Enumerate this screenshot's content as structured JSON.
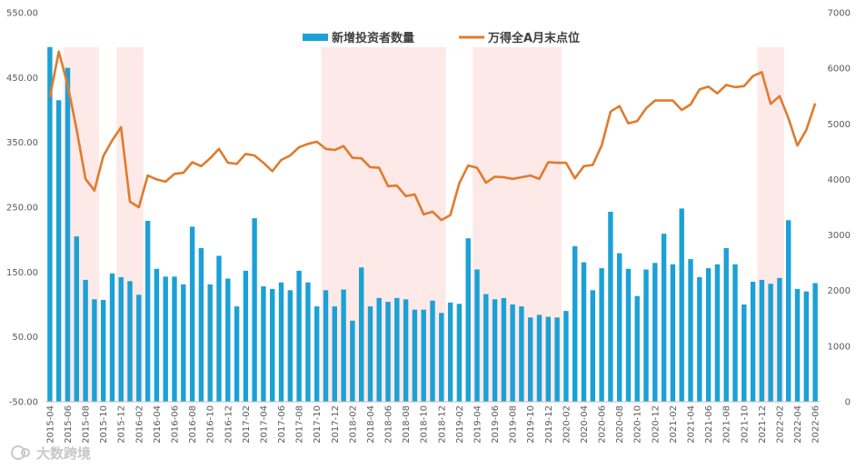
{
  "chart_data": {
    "type": "bar+line",
    "title": "",
    "legend_position": "top-center",
    "series": [
      {
        "name": "新增投资者数量",
        "type": "bar",
        "axis": "left",
        "color": "#1ba1d6",
        "values": [
          497,
          415,
          465,
          205,
          138,
          108,
          107,
          148,
          142,
          136,
          115,
          229,
          155,
          143,
          143,
          131,
          220,
          187,
          131,
          175,
          140,
          97,
          152,
          233,
          128,
          124,
          134,
          122,
          152,
          134,
          97,
          122,
          97,
          123,
          75,
          157,
          97,
          110,
          104,
          110,
          108,
          92,
          92,
          106,
          87,
          103,
          101,
          202,
          154,
          116,
          108,
          110,
          100,
          97,
          80,
          84,
          81,
          80,
          90,
          190,
          165,
          122,
          156,
          243,
          179,
          155,
          113,
          154,
          164,
          209,
          162,
          248,
          170,
          142,
          156,
          162,
          187,
          162,
          100,
          135,
          138,
          132,
          141,
          230,
          124,
          120,
          133
        ]
      },
      {
        "name": "万得全A月末点位",
        "type": "line",
        "axis": "right",
        "color": "#e07b2e",
        "values": [
          5479,
          6300,
          5700,
          4900,
          4010,
          3800,
          4420,
          4700,
          4940,
          3600,
          3500,
          4070,
          4000,
          3960,
          4100,
          4120,
          4310,
          4240,
          4380,
          4550,
          4300,
          4280,
          4460,
          4430,
          4300,
          4150,
          4350,
          4430,
          4580,
          4640,
          4680,
          4550,
          4530,
          4600,
          4390,
          4380,
          4220,
          4210,
          3880,
          3890,
          3700,
          3730,
          3370,
          3420,
          3270,
          3360,
          3930,
          4250,
          4210,
          3940,
          4050,
          4040,
          4010,
          4040,
          4070,
          4010,
          4310,
          4300,
          4300,
          4020,
          4240,
          4260,
          4610,
          5220,
          5320,
          5010,
          5050,
          5280,
          5420,
          5420,
          5420,
          5250,
          5350,
          5620,
          5670,
          5550,
          5700,
          5660,
          5680,
          5860,
          5930,
          5360,
          5500,
          5100,
          4610,
          4890,
          5370
        ]
      }
    ],
    "x": [
      "2015-04",
      "2015-05",
      "2015-06",
      "2015-07",
      "2015-08",
      "2015-09",
      "2015-10",
      "2015-11",
      "2015-12",
      "2016-01",
      "2016-02",
      "2016-03",
      "2016-04",
      "2016-05",
      "2016-06",
      "2016-07",
      "2016-08",
      "2016-09",
      "2016-10",
      "2016-11",
      "2016-12",
      "2017-01",
      "2017-02",
      "2017-03",
      "2017-04",
      "2017-05",
      "2017-06",
      "2017-07",
      "2017-08",
      "2017-09",
      "2017-10",
      "2017-11",
      "2017-12",
      "2018-01",
      "2018-02",
      "2018-03",
      "2018-04",
      "2018-05",
      "2018-06",
      "2018-07",
      "2018-08",
      "2018-09",
      "2018-10",
      "2018-11",
      "2018-12",
      "2019-01",
      "2019-02",
      "2019-03",
      "2019-04",
      "2019-05",
      "2019-06",
      "2019-07",
      "2019-08",
      "2019-09",
      "2019-10",
      "2019-11",
      "2019-12",
      "2020-01",
      "2020-02",
      "2020-03",
      "2020-04",
      "2020-05",
      "2020-06",
      "2020-07",
      "2020-08",
      "2020-09",
      "2020-10",
      "2020-11",
      "2020-12",
      "2021-01",
      "2021-02",
      "2021-03",
      "2021-04",
      "2021-05",
      "2021-06",
      "2021-07",
      "2021-08",
      "2021-09",
      "2021-10",
      "2021-11",
      "2021-12",
      "2022-01",
      "2022-02",
      "2022-03",
      "2022-04",
      "2022-05",
      "2022-06"
    ],
    "x_tick_labels": [
      "2015-04",
      "2015-06",
      "2015-08",
      "2015-10",
      "2015-12",
      "2016-02",
      "2016-04",
      "2016-06",
      "2016-08",
      "2016-10",
      "2016-12",
      "2017-02",
      "2017-04",
      "2017-06",
      "2017-08",
      "2017-10",
      "2017-12",
      "2018-02",
      "2018-04",
      "2018-06",
      "2018-08",
      "2018-10",
      "2018-12",
      "2019-02",
      "2019-04",
      "2019-06",
      "2019-08",
      "2019-10",
      "2019-12",
      "2020-02",
      "2020-04",
      "2020-06",
      "2020-08",
      "2020-10",
      "2020-12",
      "2021-02",
      "2021-04",
      "2021-06",
      "2021-08",
      "2021-10",
      "2021-12",
      "2022-02",
      "2022-04",
      "2022-06"
    ],
    "y_left": {
      "lim": [
        -50,
        550
      ],
      "tick_labels": [
        "550.00",
        "450.00",
        "350.00",
        "250.00",
        "150.00",
        "50.00",
        "-50.00"
      ]
    },
    "y_right": {
      "lim": [
        0,
        7000
      ],
      "tick_labels": [
        "7000",
        "6000",
        "5000",
        "4000",
        "3000",
        "2000",
        "1000",
        "0"
      ]
    },
    "shaded_periods": [
      {
        "start": "2015-06",
        "end": "2015-09",
        "color": "#fde9e7"
      },
      {
        "start": "2015-12",
        "end": "2016-02",
        "color": "#fde9e7"
      },
      {
        "start": "2017-11",
        "end": "2018-12",
        "color": "#fde9e7"
      },
      {
        "start": "2019-04",
        "end": "2020-01",
        "color": "#fde9e7"
      },
      {
        "start": "2021-12",
        "end": "2022-02",
        "color": "#fde9e7"
      }
    ],
    "grid": false
  },
  "watermark": {
    "text": "大数跨境"
  }
}
